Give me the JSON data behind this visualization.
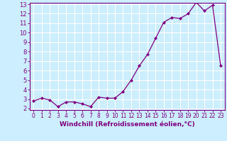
{
  "x": [
    0,
    1,
    2,
    3,
    4,
    5,
    6,
    7,
    8,
    9,
    10,
    11,
    12,
    13,
    14,
    15,
    16,
    17,
    18,
    19,
    20,
    21,
    22,
    23
  ],
  "y": [
    2.8,
    3.1,
    2.9,
    2.2,
    2.7,
    2.7,
    2.5,
    2.2,
    3.2,
    3.1,
    3.1,
    3.8,
    5.0,
    6.5,
    7.7,
    9.4,
    11.1,
    11.6,
    11.5,
    12.0,
    13.2,
    12.3,
    12.9,
    6.5
  ],
  "line_color": "#800080",
  "marker": "D",
  "marker_size": 2,
  "linewidth": 0.9,
  "xlabel": "Windchill (Refroidissement éolien,°C)",
  "xlabel_fontsize": 6.5,
  "ylim": [
    2,
    13
  ],
  "xlim": [
    -0.5,
    23.5
  ],
  "yticks": [
    2,
    3,
    4,
    5,
    6,
    7,
    8,
    9,
    10,
    11,
    12,
    13
  ],
  "xticks": [
    0,
    1,
    2,
    3,
    4,
    5,
    6,
    7,
    8,
    9,
    10,
    11,
    12,
    13,
    14,
    15,
    16,
    17,
    18,
    19,
    20,
    21,
    22,
    23
  ],
  "bg_color": "#cceeff",
  "grid_color": "#ffffff",
  "tick_color": "#800080",
  "label_color": "#800080",
  "axis_color": "#800080",
  "tick_fontsize": 5.5,
  "ytick_fontsize": 6
}
